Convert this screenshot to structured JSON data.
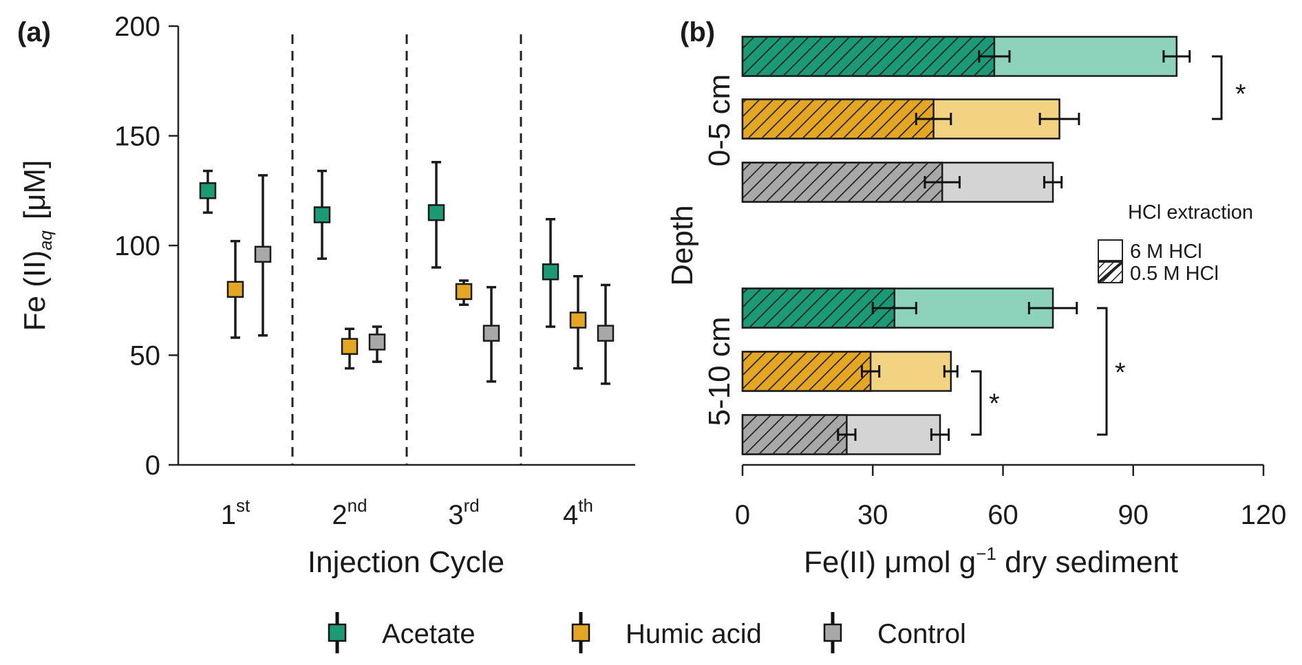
{
  "colors": {
    "acetate": "#1a9b76",
    "humic": "#e5a722",
    "control": "#a8a8a8",
    "acetate_light": "#8dd3bc",
    "humic_light": "#f2d382",
    "control_light": "#d4d4d4"
  },
  "chart_data": [
    {
      "panel": "(a)",
      "type": "scatter",
      "categories": [
        {
          "base": "1",
          "suffix": "st"
        },
        {
          "base": "2",
          "suffix": "nd"
        },
        {
          "base": "3",
          "suffix": "rd"
        },
        {
          "base": "4",
          "suffix": "th"
        }
      ],
      "xlabel": "Injection Cycle",
      "ylabel": {
        "main": "Fe (II)",
        "sub": "aq",
        "unit": "[μM]"
      },
      "ylim": [
        0,
        200
      ],
      "yticks": [
        0,
        50,
        100,
        150,
        200
      ],
      "series": [
        {
          "name": "Acetate",
          "key": "acetate",
          "values": [
            125,
            114,
            115,
            88
          ],
          "err_low": [
            115,
            94,
            90,
            63
          ],
          "err_high": [
            134,
            134,
            138,
            112
          ]
        },
        {
          "name": "Humic acid",
          "key": "humic",
          "values": [
            80,
            54,
            79,
            66
          ],
          "err_low": [
            58,
            44,
            73,
            44
          ],
          "err_high": [
            102,
            62,
            84,
            86
          ]
        },
        {
          "name": "Control",
          "key": "control",
          "values": [
            96,
            56,
            60,
            60
          ],
          "err_low": [
            59,
            47,
            38,
            37
          ],
          "err_high": [
            132,
            63,
            81,
            82
          ]
        }
      ]
    },
    {
      "panel": "(b)",
      "type": "bar",
      "orientation": "horizontal",
      "ylabel": "Depth",
      "xlabel": {
        "main": "Fe(II) μmol g",
        "sup": "−1",
        "rest": " dry sediment"
      },
      "xlim": [
        0,
        120
      ],
      "xticks": [
        0,
        30,
        60,
        90,
        120
      ],
      "groups": [
        {
          "label": "0-5 cm",
          "bars": [
            {
              "key": "acetate",
              "hcl_0_5": 58,
              "hcl_0_5_err": 3.5,
              "hcl_6": 100,
              "hcl_6_err": 3
            },
            {
              "key": "humic",
              "hcl_0_5": 44,
              "hcl_0_5_err": 4,
              "hcl_6": 73,
              "hcl_6_err": 4.5
            },
            {
              "key": "control",
              "hcl_0_5": 46,
              "hcl_0_5_err": 4,
              "hcl_6": 71.5,
              "hcl_6_err": 2
            }
          ]
        },
        {
          "label": "5-10 cm",
          "bars": [
            {
              "key": "acetate",
              "hcl_0_5": 35,
              "hcl_0_5_err": 5,
              "hcl_6": 71.5,
              "hcl_6_err": 5.5
            },
            {
              "key": "humic",
              "hcl_0_5": 29.5,
              "hcl_0_5_err": 2,
              "hcl_6": 48,
              "hcl_6_err": 1.5
            },
            {
              "key": "control",
              "hcl_0_5": 24,
              "hcl_0_5_err": 2,
              "hcl_6": 45.5,
              "hcl_6_err": 2
            }
          ]
        }
      ],
      "significance": [
        "*",
        "*",
        "*"
      ],
      "legend": {
        "title": "HCl extraction",
        "items": [
          "6 M HCl",
          "0.5 M HCl"
        ]
      }
    }
  ],
  "legend": [
    "Acetate",
    "Humic acid",
    "Control"
  ]
}
